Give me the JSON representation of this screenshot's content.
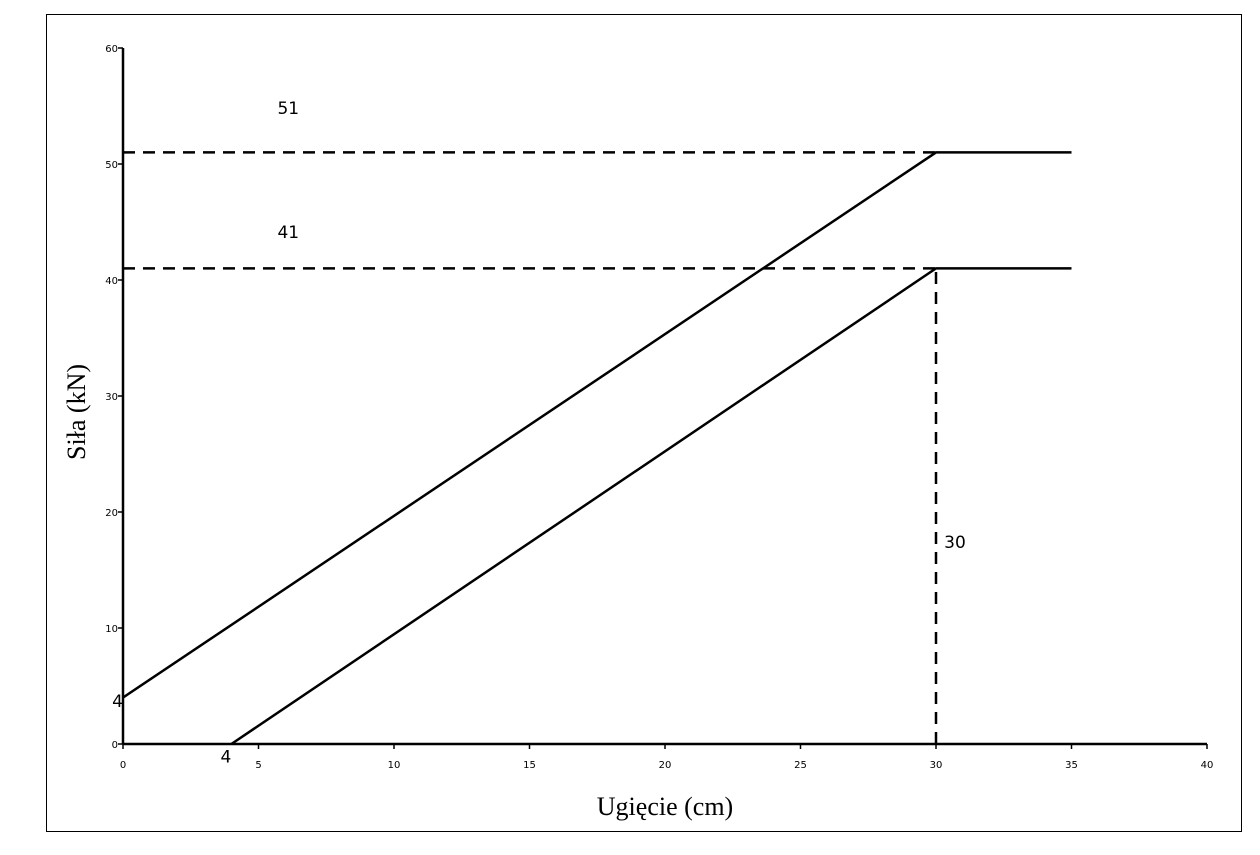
{
  "chart_data": {
    "type": "line",
    "xlabel": "Ugięcie (cm)",
    "ylabel": "Siła (kN)",
    "xlim": [
      0,
      40
    ],
    "ylim": [
      0,
      60
    ],
    "x_ticks": [
      0,
      5,
      10,
      15,
      20,
      25,
      30,
      35,
      40
    ],
    "y_ticks": [
      0,
      10,
      20,
      30,
      40,
      50,
      60
    ],
    "grid": false,
    "series": [
      {
        "points": [
          [
            0,
            4
          ],
          [
            30,
            51
          ],
          [
            35,
            51
          ]
        ]
      },
      {
        "points": [
          [
            4,
            0
          ],
          [
            30,
            41
          ],
          [
            35,
            41
          ]
        ]
      }
    ],
    "reference_lines": [
      {
        "points": [
          [
            0,
            51
          ],
          [
            30,
            51
          ]
        ],
        "style": "dashed"
      },
      {
        "points": [
          [
            0,
            41
          ],
          [
            30,
            41
          ]
        ],
        "style": "dashed"
      },
      {
        "points": [
          [
            30,
            0
          ],
          [
            30,
            41
          ]
        ],
        "style": "dashed"
      }
    ],
    "annotations": [
      {
        "text": "51",
        "x": 5.7,
        "y": 54.3
      },
      {
        "text": "41",
        "x": 5.7,
        "y": 43.6
      },
      {
        "text": "30",
        "x": 30.3,
        "y": 16.9
      },
      {
        "text": "4",
        "x": -0.4,
        "y": 3.2
      },
      {
        "text": "4",
        "x": 3.6,
        "y": -1.6
      }
    ],
    "colors": {
      "line": "#000000",
      "axis": "#000000"
    }
  }
}
